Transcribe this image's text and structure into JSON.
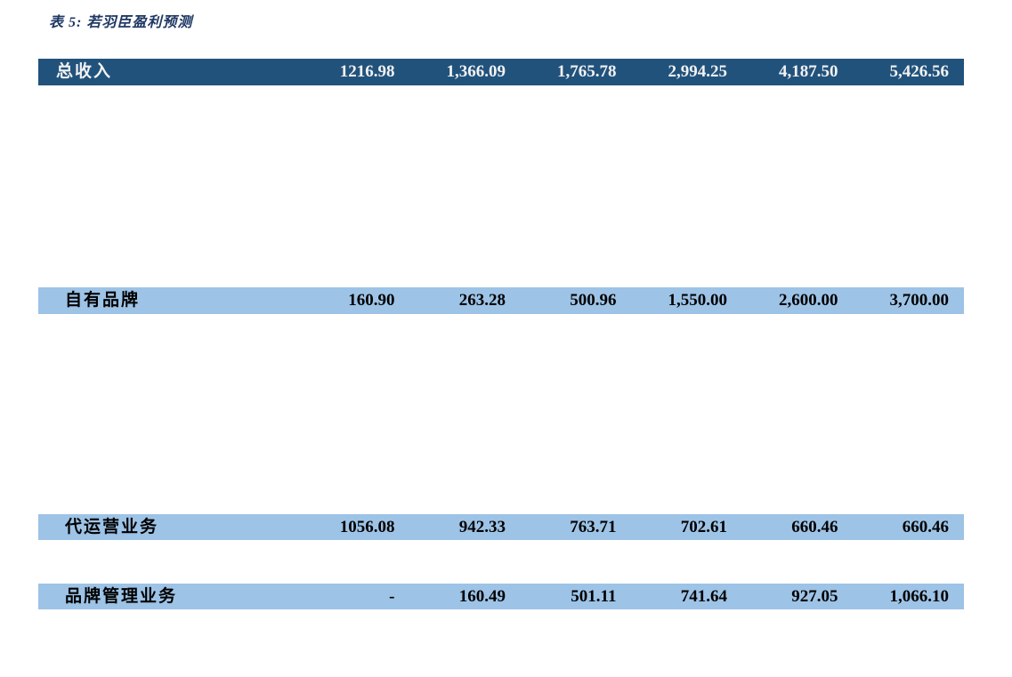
{
  "title": "表 5: 若羽臣盈利预测",
  "colors": {
    "title_text": "#1f3864",
    "header_row_bg": "#21527c",
    "header_row_text": "#f2f2f2",
    "sub_row_bg": "#9dc3e6",
    "sub_row_text": "#000000",
    "page_bg": "#ffffff"
  },
  "table": {
    "rows": [
      {
        "label": "总收入",
        "style": "dark",
        "values": [
          "1216.98",
          "1,366.09",
          "1,765.78",
          "2,994.25",
          "4,187.50",
          "5,426.56"
        ]
      },
      {
        "label": "自有品牌",
        "style": "light",
        "values": [
          "160.90",
          "263.28",
          "500.96",
          "1,550.00",
          "2,600.00",
          "3,700.00"
        ]
      },
      {
        "label": "代运营业务",
        "style": "light",
        "values": [
          "1056.08",
          "942.33",
          "763.71",
          "702.61",
          "660.46",
          "660.46"
        ]
      },
      {
        "label": "品牌管理业务",
        "style": "light",
        "values": [
          "-",
          "160.49",
          "501.11",
          "741.64",
          "927.05",
          "1,066.10"
        ]
      }
    ]
  }
}
